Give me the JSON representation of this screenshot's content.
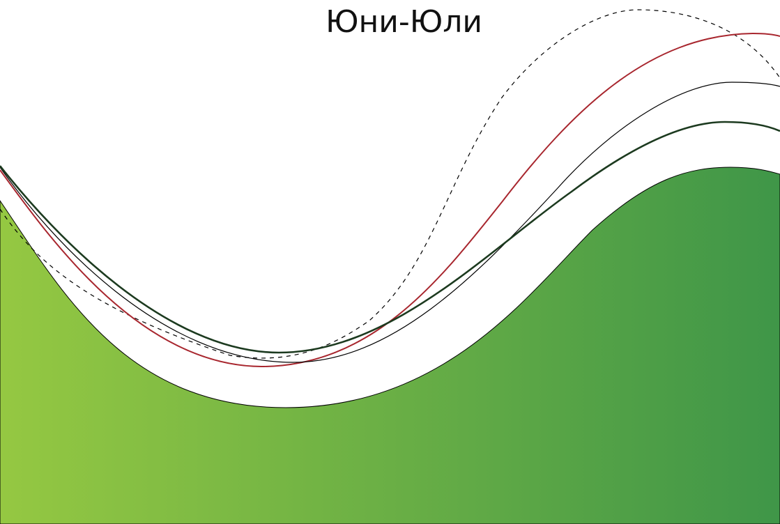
{
  "title": "Юни-Юли",
  "colors": {
    "fill_light_green": "#95c842",
    "fill_dark_green": "#3f9648",
    "line_red": "#a8262e",
    "line_dark_green": "#1c3a1f",
    "line_black": "#000000",
    "line_dashed": "#000000"
  }
}
